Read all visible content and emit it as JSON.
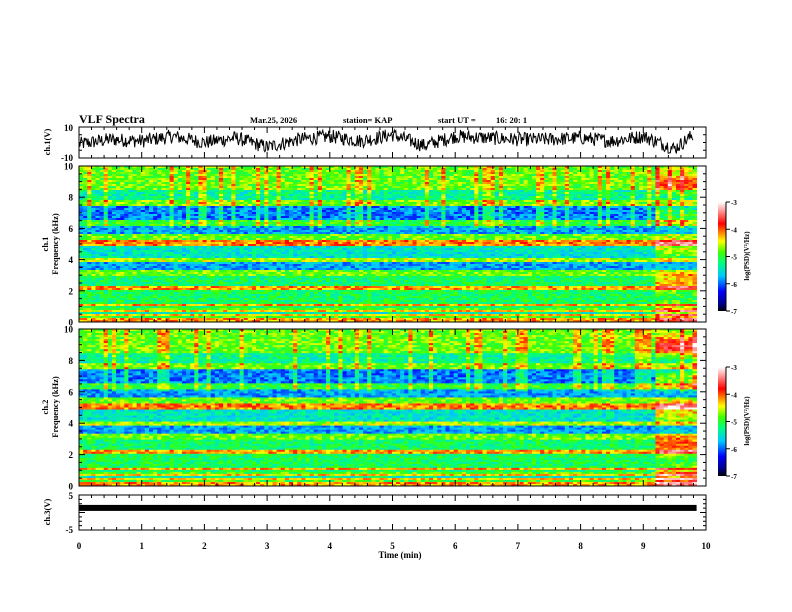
{
  "header": {
    "title": "VLF Spectra",
    "date": "Mar.25, 2026",
    "station": "station= KAP",
    "start_label": "start  UT  =",
    "start_time": "16: 20: 1"
  },
  "chart_data": [
    {
      "type": "line",
      "panel": "ch1-waveform",
      "ylabel": "ch.1(V)",
      "ylim": [
        -10,
        10
      ],
      "yticks": [
        "10",
        "-10"
      ],
      "xlim": [
        0,
        10
      ],
      "series_description_values": {
        "x_min": [
          0,
          0.5,
          1.0,
          1.5,
          2.0,
          2.5,
          3.0,
          3.5,
          4.0,
          4.5,
          5.0,
          5.5,
          6.0,
          6.5,
          7.0,
          7.5,
          8.0,
          8.5,
          9.0,
          9.5,
          9.8
        ],
        "y_volts": [
          -1,
          2,
          1,
          4,
          0,
          3,
          -3,
          2,
          4,
          1,
          5,
          -2,
          4,
          3,
          2,
          2,
          3,
          1,
          4,
          -4,
          5
        ]
      }
    },
    {
      "type": "heatmap",
      "panel": "ch1-spectrogram",
      "ylabel_line1": "ch.1",
      "ylabel_line2": "Frequency  (kHz)",
      "ylim": [
        0,
        10
      ],
      "yticks": [
        "0",
        "2",
        "4",
        "6",
        "8",
        "10"
      ],
      "xlim": [
        0,
        10
      ],
      "colorbar": {
        "label": "log(PSD)(V²/Hz)",
        "range": [
          -7,
          -3
        ],
        "ticks": [
          "-3",
          "-4",
          "-5",
          "-6",
          "-7"
        ]
      }
    },
    {
      "type": "heatmap",
      "panel": "ch2-spectrogram",
      "ylabel_line1": "ch.2",
      "ylabel_line2": "Frequency  (kHz)",
      "ylim": [
        0,
        10
      ],
      "yticks": [
        "0",
        "2",
        "4",
        "6",
        "8",
        "10"
      ],
      "xlim": [
        0,
        10
      ],
      "colorbar": {
        "label": "log(PSD)(V²/Hz)",
        "range": [
          -7,
          -3
        ],
        "ticks": [
          "-3",
          "-4",
          "-5",
          "-6",
          "-7"
        ]
      }
    },
    {
      "type": "line",
      "panel": "ch3-waveform",
      "ylabel": "ch.3(V)",
      "ylim": [
        -5,
        5
      ],
      "yticks": [
        "5",
        "-5"
      ],
      "xlim": [
        0,
        10
      ],
      "level_volts": 1.3
    }
  ],
  "xaxis": {
    "label": "Time  (min)",
    "ticks": [
      "0",
      "1",
      "2",
      "3",
      "4",
      "5",
      "6",
      "7",
      "8",
      "9",
      "10"
    ]
  },
  "data_end_min": 9.85,
  "colors": {
    "frame": "#000000",
    "background": "#ffffff"
  }
}
